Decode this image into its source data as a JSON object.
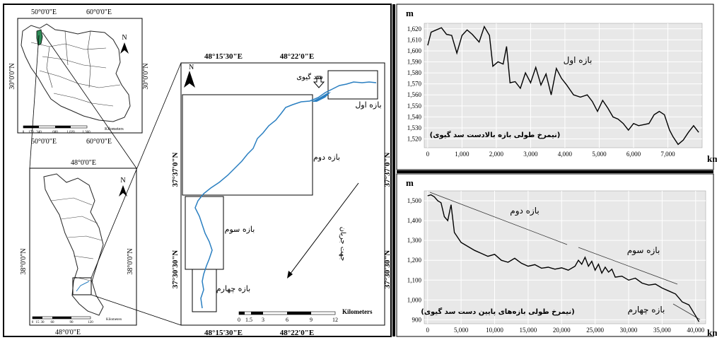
{
  "inset_iran": {
    "top_coords": [
      "50°0'0\"E",
      "60°0'0\"E"
    ],
    "bottom_coords": [
      "50°0'0\"E",
      "60°0'0\"E"
    ],
    "left_coord": "30°0'0\"N",
    "right_coord": "30°0'0\"N",
    "north": "N",
    "scale_ticks": [
      "0",
      "170",
      "340",
      "680",
      "1,020",
      "1,360"
    ],
    "scale_unit": "Kilometers"
  },
  "inset_province": {
    "top_coord": "48°0'0\"E",
    "bottom_coord": "48°0'0\"E",
    "left_coord": "38°0'0\"N",
    "right_coord": "38°0'0\"N",
    "north": "N",
    "scale_ticks": [
      "0",
      "15",
      "30",
      "60",
      "90",
      "120"
    ],
    "scale_unit": "Kilometers"
  },
  "main_map": {
    "top_coords": [
      "48°15'30\"E",
      "48°22'0\"E"
    ],
    "bottom_coords": [
      "48°15'30\"E",
      "48°22'0\"E"
    ],
    "left_coords": [
      "37°37'0\"N",
      "37°30'30\"N"
    ],
    "right_coords": [
      "37°37'0\"N",
      "37°30'30\"N"
    ],
    "north": "N",
    "dam_label": "سد گیوی",
    "reach_labels": [
      "بازه اول",
      "بازه دوم",
      "بازه سوم",
      "بازه چهارم"
    ],
    "flow_label": "جهت جریان",
    "scale_ticks": [
      "0",
      "1.5",
      "3",
      "6",
      "9",
      "12"
    ],
    "scale_unit": "Kilometers"
  },
  "chart_data": [
    {
      "type": "line",
      "title": "(نیمرخ طولی بازه بالادست سد گیوی)",
      "annotation": "بازه اول",
      "ylabel": "m",
      "xlabel": "km",
      "ylim": [
        1512,
        1625
      ],
      "xlim": [
        -100,
        8000
      ],
      "yticks": [
        "1,520",
        "1,530",
        "1,540",
        "1,550",
        "1,560",
        "1,570",
        "1,580",
        "1,590",
        "1,600",
        "1,610",
        "1,620"
      ],
      "xticks": [
        "0",
        "1,000",
        "2,000",
        "3,000",
        "4,000",
        "5,000",
        "6,000",
        "7,000"
      ],
      "x": [
        0,
        100,
        250,
        400,
        550,
        700,
        850,
        1000,
        1150,
        1300,
        1500,
        1650,
        1800,
        1900,
        2050,
        2200,
        2300,
        2400,
        2550,
        2700,
        2850,
        3000,
        3150,
        3300,
        3450,
        3600,
        3750,
        3900,
        4050,
        4250,
        4450,
        4650,
        4800,
        4950,
        5100,
        5250,
        5400,
        5550,
        5700,
        5850,
        6000,
        6150,
        6300,
        6450,
        6600,
        6750,
        6900,
        7050,
        7150,
        7300,
        7450,
        7600,
        7750,
        7900
      ],
      "y": [
        1605,
        1617,
        1619,
        1621,
        1615,
        1614,
        1598,
        1614,
        1619,
        1615,
        1608,
        1622,
        1614,
        1586,
        1590,
        1588,
        1604,
        1571,
        1572,
        1566,
        1580,
        1571,
        1585,
        1569,
        1579,
        1560,
        1584,
        1575,
        1569,
        1560,
        1558,
        1560,
        1554,
        1545,
        1555,
        1548,
        1540,
        1538,
        1534,
        1528,
        1534,
        1532,
        1533,
        1534,
        1542,
        1545,
        1542,
        1528,
        1522,
        1515,
        1519,
        1526,
        1532,
        1526
      ]
    },
    {
      "type": "line",
      "title": "(نیمرخ طولی بازه‌های پایین دست سد گیوی)",
      "annotations": [
        "بازه دوم",
        "بازه سوم",
        "بازه چهارم"
      ],
      "ylabel": "m",
      "xlabel": "km",
      "ylim": [
        880,
        1550
      ],
      "xlim": [
        -500,
        41500
      ],
      "yticks": [
        "900",
        "1,000",
        "1,100",
        "1,200",
        "1,300",
        "1,400",
        "1,500"
      ],
      "xticks": [
        "0",
        "5,000",
        "10,000",
        "15,000",
        "20,000",
        "25,000",
        "30,000",
        "35,000",
        "40,000"
      ],
      "x": [
        0,
        500,
        1000,
        1500,
        2000,
        2500,
        3000,
        3500,
        4000,
        5000,
        6000,
        7000,
        8000,
        9000,
        10000,
        11000,
        12000,
        13000,
        14000,
        15000,
        16000,
        17000,
        18000,
        19000,
        20000,
        21000,
        22000,
        22500,
        23000,
        23500,
        24000,
        24500,
        25000,
        25500,
        26000,
        26500,
        27000,
        27500,
        28000,
        29000,
        30000,
        31000,
        32000,
        33000,
        34000,
        35000,
        36000,
        37000,
        38000,
        39000,
        40000,
        40500
      ],
      "y": [
        1525,
        1530,
        1520,
        1500,
        1490,
        1420,
        1400,
        1480,
        1340,
        1290,
        1270,
        1250,
        1235,
        1220,
        1230,
        1200,
        1190,
        1210,
        1185,
        1170,
        1178,
        1160,
        1165,
        1155,
        1162,
        1150,
        1170,
        1200,
        1180,
        1215,
        1170,
        1195,
        1150,
        1180,
        1135,
        1165,
        1140,
        1155,
        1115,
        1120,
        1100,
        1110,
        1085,
        1075,
        1080,
        1060,
        1045,
        1030,
        990,
        975,
        920,
        890
      ]
    }
  ]
}
